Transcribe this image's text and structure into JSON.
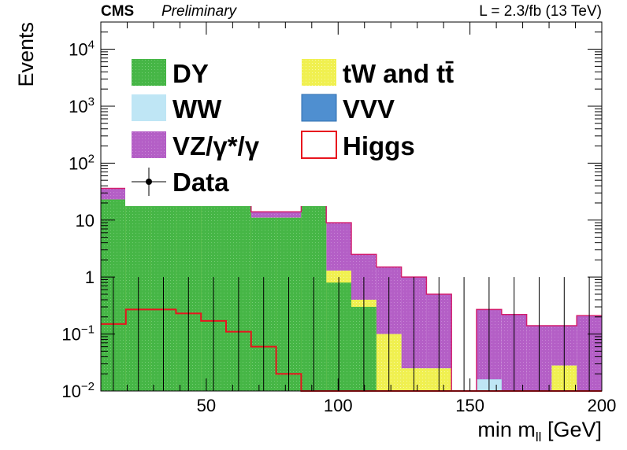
{
  "header": {
    "experiment": "CMS",
    "status": "Preliminary",
    "lumi": "L = 2.3/fb (13 TeV)"
  },
  "chart_data": {
    "type": "bar",
    "title": "",
    "xlabel": "min m",
    "xlabel_sub": "ll",
    "xlabel_unit": " [GeV]",
    "ylabel": "Events",
    "xlim": [
      10,
      200
    ],
    "ylim": [
      0.01,
      30000
    ],
    "y_scale": "log",
    "x_ticks": [
      {
        "value": 50,
        "label": "50"
      },
      {
        "value": 100,
        "label": "100"
      },
      {
        "value": 150,
        "label": "150"
      },
      {
        "value": 200,
        "label": "200"
      }
    ],
    "y_ticks": [
      {
        "value": 0.01,
        "base": "10",
        "exp": "−2",
        "label": ""
      },
      {
        "value": 0.1,
        "base": "10",
        "exp": "−1",
        "label": ""
      },
      {
        "value": 1,
        "base": "",
        "exp": "",
        "label": "1"
      },
      {
        "value": 10,
        "base": "",
        "exp": "",
        "label": "10"
      },
      {
        "value": 100,
        "base": "10",
        "exp": "2",
        "label": ""
      },
      {
        "value": 1000,
        "base": "10",
        "exp": "3",
        "label": ""
      },
      {
        "value": 10000,
        "base": "10",
        "exp": "4",
        "label": ""
      }
    ],
    "bin_edges": [
      10,
      19.5,
      29,
      38.5,
      48,
      57.5,
      67,
      76.5,
      86,
      95.5,
      105,
      114.5,
      124,
      133.5,
      143,
      152.5,
      162,
      171.5,
      181,
      190.5,
      200
    ],
    "stack_totals": [
      36,
      20,
      20,
      20,
      20,
      19,
      14,
      14,
      18,
      9,
      2.5,
      1.5,
      1.0,
      0.5,
      0.01,
      0.27,
      0.22,
      0.14,
      0.14,
      0.21
    ],
    "stack_layers": [
      {
        "name": "DY",
        "color": "#46b646",
        "values": [
          23,
          19,
          19,
          19,
          19,
          19,
          11,
          11,
          18,
          0.8,
          0.3,
          0.01,
          0.01,
          0.01,
          0.01,
          0.01,
          0.01,
          0.01,
          0.01,
          0.01
        ]
      },
      {
        "name": "tW and tt̄",
        "color": "#f0f050",
        "values": [
          23,
          19,
          19,
          19,
          19,
          19,
          11,
          11,
          18,
          1.3,
          0.4,
          0.1,
          0.025,
          0.025,
          0.01,
          0.01,
          0.01,
          0.01,
          0.028,
          0.01
        ]
      },
      {
        "name": "WW",
        "color": "#bfe6f5",
        "values": [
          23,
          19,
          19,
          19,
          19,
          19,
          11,
          11,
          18,
          1.3,
          0.4,
          0.1,
          0.025,
          0.025,
          0.01,
          0.016,
          0.01,
          0.01,
          0.028,
          0.01
        ]
      },
      {
        "name": "VVV",
        "color": "#4f8fd0",
        "values": [
          23,
          19,
          19,
          19,
          19,
          19,
          11,
          11,
          18,
          1.3,
          0.4,
          0.1,
          0.025,
          0.025,
          0.01,
          0.016,
          0.01,
          0.01,
          0.028,
          0.01
        ]
      }
    ],
    "higgs": {
      "name": "Higgs",
      "color": "#e8141e",
      "values": [
        0.15,
        0.27,
        0.27,
        0.23,
        0.17,
        0.11,
        0.06,
        0.02,
        0.01,
        0.01,
        0.01,
        0.01,
        0.01,
        0.01,
        0.01,
        0.01,
        0.01,
        0.01,
        0.01,
        0.01
      ]
    },
    "data": {
      "name": "Data",
      "values": [
        0,
        0,
        0,
        0,
        0,
        0,
        0,
        0,
        0,
        0,
        0,
        0,
        0,
        0,
        0,
        0,
        0,
        0,
        0,
        0
      ],
      "err_up": 1.0
    },
    "legend": {
      "placement": "top-left",
      "entries": [
        {
          "label": "DY",
          "type": "fill",
          "color": "#46b646"
        },
        {
          "label": "tW and tt̄",
          "type": "fill",
          "color": "#f0f050"
        },
        {
          "label": "WW",
          "type": "fill",
          "color": "#bfe6f5"
        },
        {
          "label": "VVV",
          "type": "fill",
          "color": "#4f8fd0"
        },
        {
          "label": "VZ/γ*/γ",
          "type": "fill",
          "color": "#b45fc6"
        },
        {
          "label": "Higgs",
          "type": "line",
          "color": "#e8141e"
        },
        {
          "label": "Data",
          "type": "marker",
          "color": "#000000"
        }
      ]
    },
    "vz_color": "#b45fc6",
    "outline_color": "#d21e6e"
  }
}
